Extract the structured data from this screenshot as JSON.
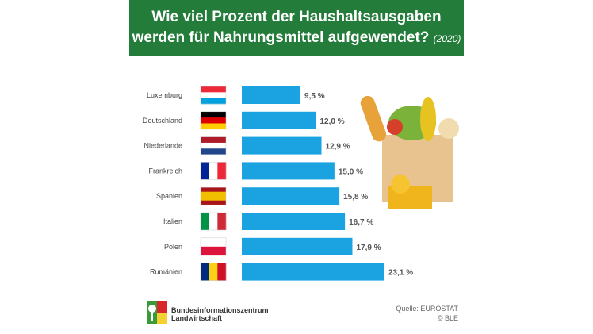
{
  "chart_data": {
    "type": "bar",
    "orientation": "horizontal",
    "title": "Wie viel Prozent der Haushaltsausgaben werden für Nahrungsmittel aufgewendet?",
    "subtitle": "(2020)",
    "categories": [
      "Luxemburg",
      "Deutschland",
      "Niederlande",
      "Frankreich",
      "Spanien",
      "Italien",
      "Polen",
      "Rumänien"
    ],
    "values": [
      9.5,
      12.0,
      12.9,
      15.0,
      15.8,
      16.7,
      17.9,
      23.1
    ],
    "value_labels": [
      "9,5 %",
      "12,0 %",
      "12,9 %",
      "15,0 %",
      "15,8 %",
      "16,7 %",
      "17,9 %",
      "23,1 %"
    ],
    "flags": [
      [
        "#ed2939",
        "#ffffff",
        "#00a1de"
      ],
      [
        "#000000",
        "#dd0000",
        "#ffce00"
      ],
      [
        "#ae1c28",
        "#ffffff",
        "#21468b"
      ],
      [
        "v",
        "#002395",
        "#ffffff",
        "#ed2939"
      ],
      [
        "#aa151b",
        "#f1bf00",
        "#aa151b"
      ],
      [
        "v",
        "#009246",
        "#ffffff",
        "#ce2b37"
      ],
      [
        "#ffffff",
        "#dc143c"
      ],
      [
        "v",
        "#002b7f",
        "#fcd116",
        "#ce1126"
      ]
    ],
    "bar_color": "#1aa3e0",
    "xlim": [
      0,
      23.1
    ]
  },
  "footer": {
    "org_line1": "Bundesinformationszentrum",
    "org_line2": "Landwirtschaft",
    "source": "Quelle: EUROSTAT",
    "copyright": "© BLE"
  }
}
